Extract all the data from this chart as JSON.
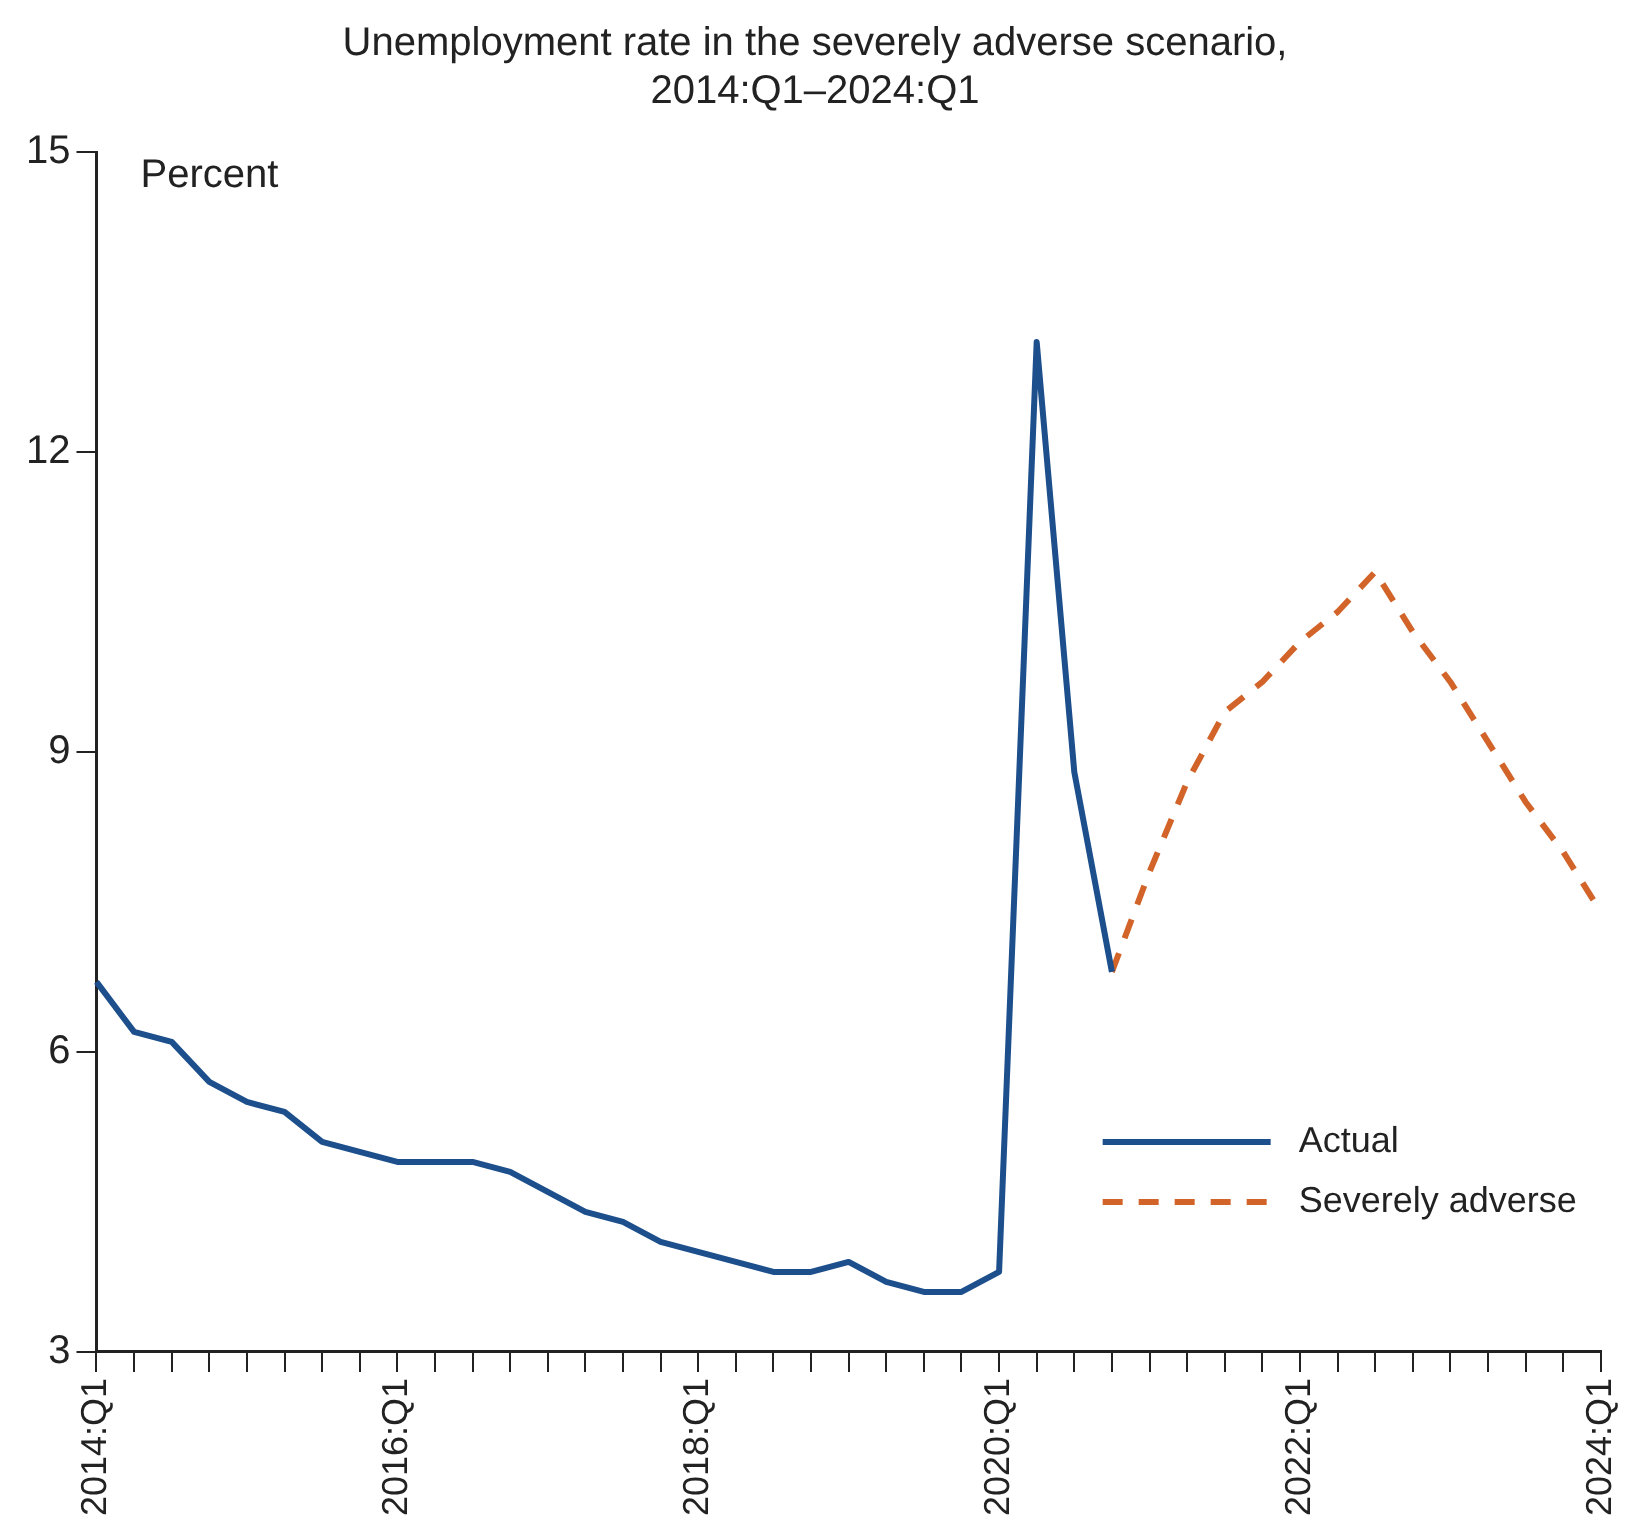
{
  "chart_data": {
    "type": "line",
    "title": "Unemployment rate in the severely adverse scenario, 2014:Q1–2024:Q1",
    "ylabel": "Percent",
    "categories": [
      "2014:Q1",
      null,
      null,
      null,
      null,
      null,
      null,
      null,
      "2016:Q1",
      null,
      null,
      null,
      null,
      null,
      null,
      null,
      "2018:Q1",
      null,
      null,
      null,
      null,
      null,
      null,
      null,
      "2020:Q1",
      null,
      null,
      null,
      null,
      null,
      null,
      null,
      "2022:Q1",
      null,
      null,
      null,
      null,
      null,
      null,
      null,
      "2024:Q1"
    ],
    "series": [
      {
        "name": "Actual",
        "color": "#1c4f8c",
        "line_style": "solid",
        "values": [
          6.7,
          6.2,
          6.1,
          5.7,
          5.5,
          5.4,
          5.1,
          5.0,
          4.9,
          4.9,
          4.9,
          4.8,
          4.6,
          4.4,
          4.3,
          4.1,
          4.0,
          3.9,
          3.8,
          3.8,
          3.9,
          3.7,
          3.6,
          3.6,
          3.8,
          13.1,
          8.8,
          6.8,
          null,
          null,
          null,
          null,
          null,
          null,
          null,
          null,
          null,
          null,
          null,
          null,
          null
        ]
      },
      {
        "name": "Severely adverse",
        "color": "#d2642a",
        "line_style": "dashed",
        "values": [
          null,
          null,
          null,
          null,
          null,
          null,
          null,
          null,
          null,
          null,
          null,
          null,
          null,
          null,
          null,
          null,
          null,
          null,
          null,
          null,
          null,
          null,
          null,
          null,
          null,
          null,
          null,
          6.8,
          7.8,
          8.7,
          9.4,
          9.7,
          10.1,
          10.4,
          10.8,
          10.2,
          9.7,
          9.1,
          8.5,
          8.0,
          7.4
        ]
      }
    ],
    "ylim": [
      3,
      15
    ],
    "yticks": [
      3,
      6,
      9,
      12,
      15
    ],
    "grid": false,
    "legend": "bottom right",
    "marker": "none"
  }
}
